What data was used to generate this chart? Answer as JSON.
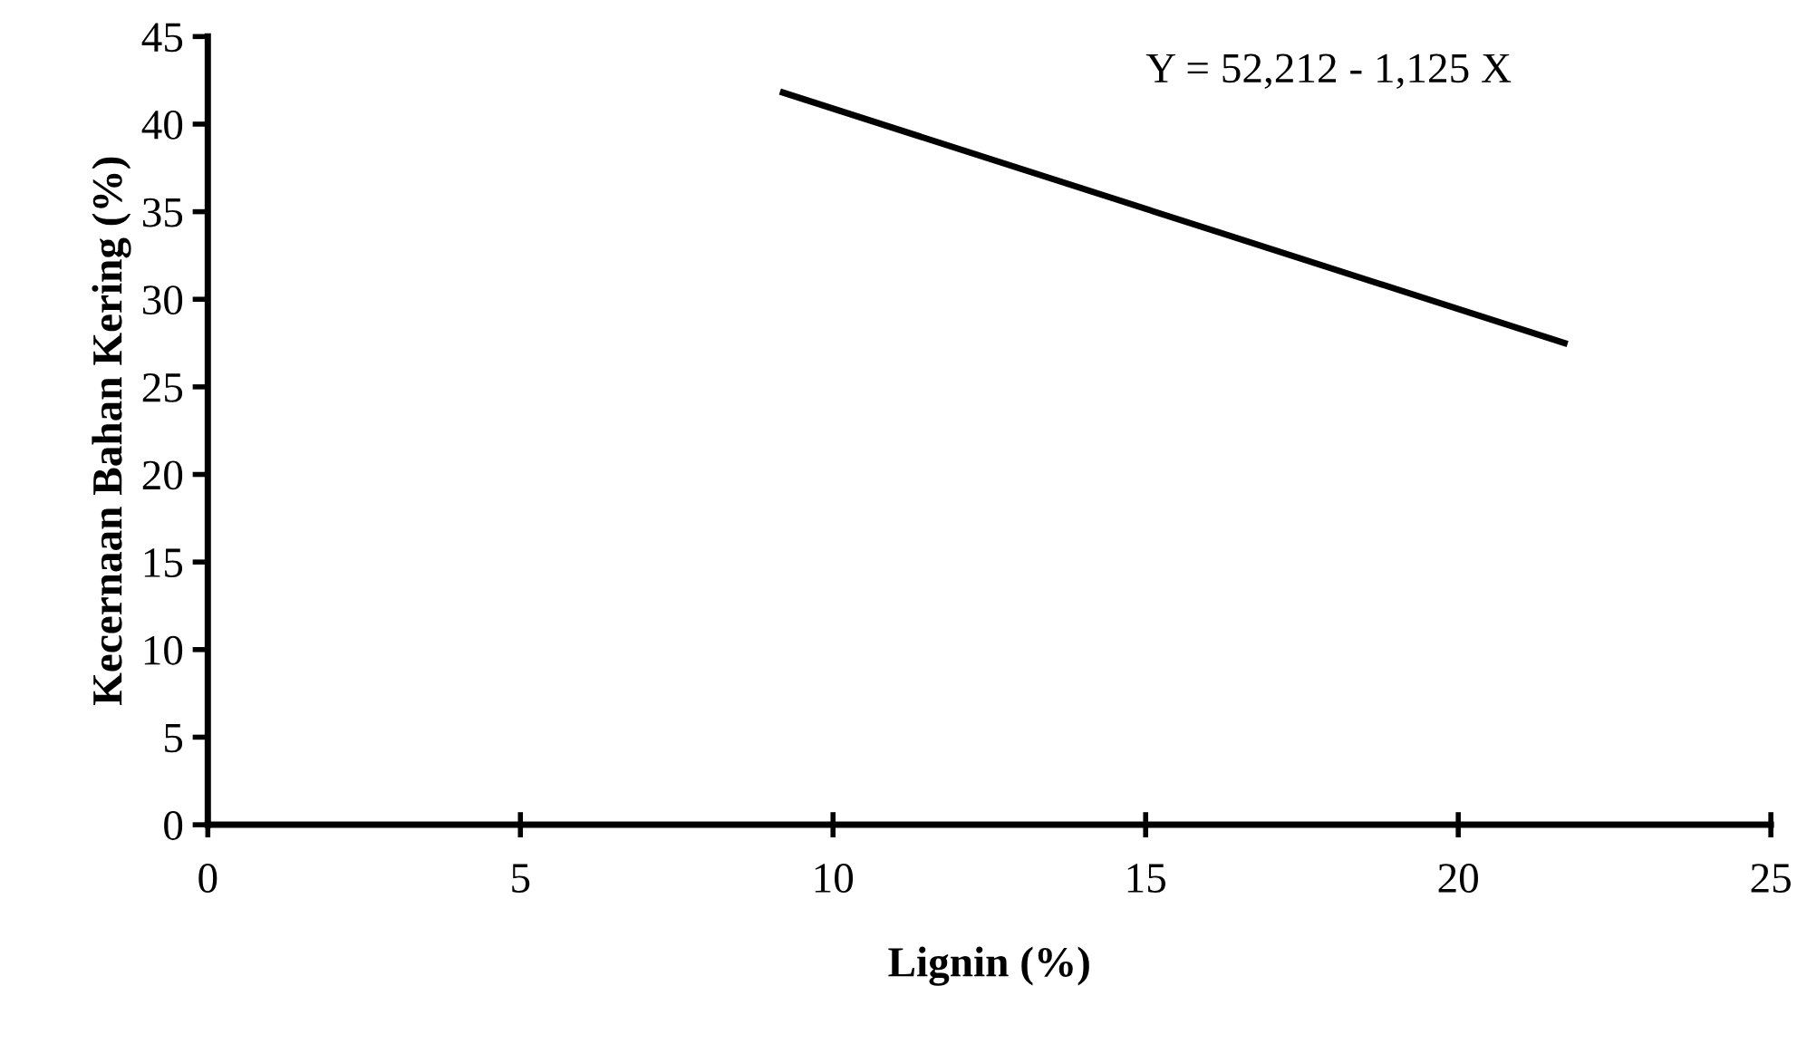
{
  "chart_data": {
    "type": "line",
    "xlabel": "Lignin (%)",
    "ylabel": "Kecernaan Bahan Kering (%)",
    "x": [
      9.2,
      21.7
    ],
    "series": [
      {
        "color": "#000000",
        "values": [
          41.8,
          27.5
        ]
      }
    ],
    "xlim": [
      0,
      25
    ],
    "xticks": [
      0,
      5,
      10,
      15,
      20,
      25
    ],
    "ylim": [
      0,
      45
    ],
    "yticks": [
      0,
      5,
      10,
      15,
      20,
      25,
      30,
      35,
      40,
      45
    ],
    "annotations": [
      "Y = 52,212 - 1,125 X"
    ],
    "grid": false,
    "legend": false,
    "marker": "none",
    "line_style": "solid"
  }
}
